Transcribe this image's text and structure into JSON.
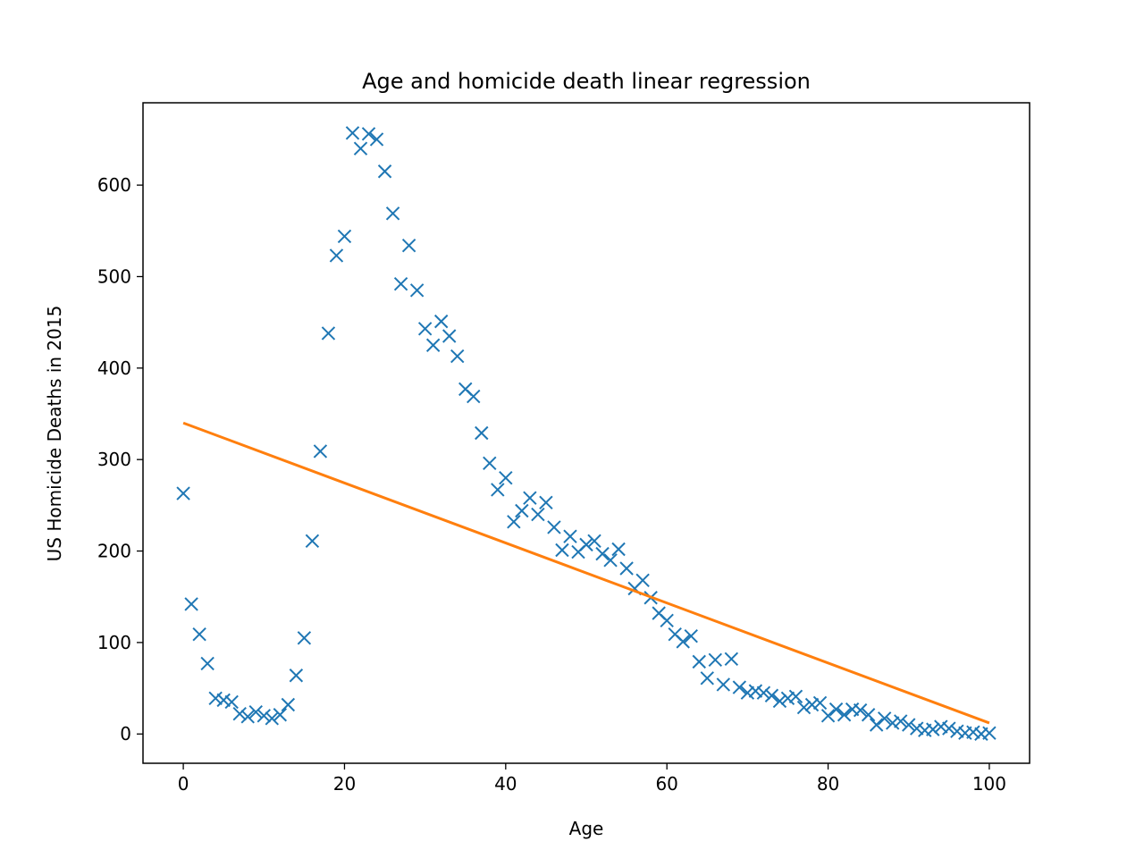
{
  "chart_data": {
    "type": "scatter",
    "title": "Age and homicide death linear regression",
    "xlabel": "Age",
    "ylabel": "US Homicide Deaths in 2015",
    "xlim": [
      -5,
      105
    ],
    "ylim": [
      -32,
      690
    ],
    "xticks": [
      0,
      20,
      40,
      60,
      80,
      100
    ],
    "yticks": [
      0,
      100,
      200,
      300,
      400,
      500,
      600
    ],
    "grid": false,
    "series": [
      {
        "kind": "scatter",
        "marker": "x",
        "color": "#1f77b4",
        "x": [
          0,
          1,
          2,
          3,
          4,
          5,
          6,
          7,
          8,
          9,
          10,
          11,
          12,
          13,
          14,
          15,
          16,
          17,
          18,
          19,
          20,
          21,
          22,
          23,
          24,
          25,
          26,
          27,
          28,
          29,
          30,
          31,
          32,
          33,
          34,
          35,
          36,
          37,
          38,
          39,
          40,
          41,
          42,
          43,
          44,
          45,
          46,
          47,
          48,
          49,
          50,
          51,
          52,
          53,
          54,
          55,
          56,
          57,
          58,
          59,
          60,
          61,
          62,
          63,
          64,
          65,
          66,
          67,
          68,
          69,
          70,
          71,
          72,
          73,
          74,
          75,
          76,
          77,
          78,
          79,
          80,
          81,
          82,
          83,
          84,
          85,
          86,
          87,
          88,
          89,
          90,
          91,
          92,
          93,
          94,
          95,
          96,
          97,
          98,
          99,
          100
        ],
        "y": [
          263,
          142,
          109,
          77,
          39,
          37,
          35,
          22,
          19,
          24,
          20,
          17,
          21,
          32,
          64,
          105,
          211,
          309,
          438,
          523,
          544,
          657,
          640,
          656,
          650,
          615,
          569,
          492,
          534,
          485,
          443,
          425,
          451,
          435,
          413,
          377,
          369,
          329,
          296,
          267,
          280,
          232,
          244,
          258,
          240,
          253,
          226,
          201,
          216,
          199,
          207,
          211,
          197,
          190,
          202,
          181,
          159,
          168,
          149,
          132,
          124,
          109,
          101,
          107,
          79,
          61,
          81,
          54,
          82,
          51,
          45,
          47,
          45,
          42,
          36,
          39,
          41,
          29,
          32,
          34,
          20,
          27,
          21,
          27,
          26,
          21,
          10,
          17,
          12,
          14,
          10,
          6,
          4,
          5,
          8,
          6,
          3,
          1,
          2,
          0,
          1
        ]
      },
      {
        "kind": "line",
        "color": "#ff7f0e",
        "x": [
          0,
          100
        ],
        "y": [
          340,
          12
        ]
      }
    ]
  }
}
